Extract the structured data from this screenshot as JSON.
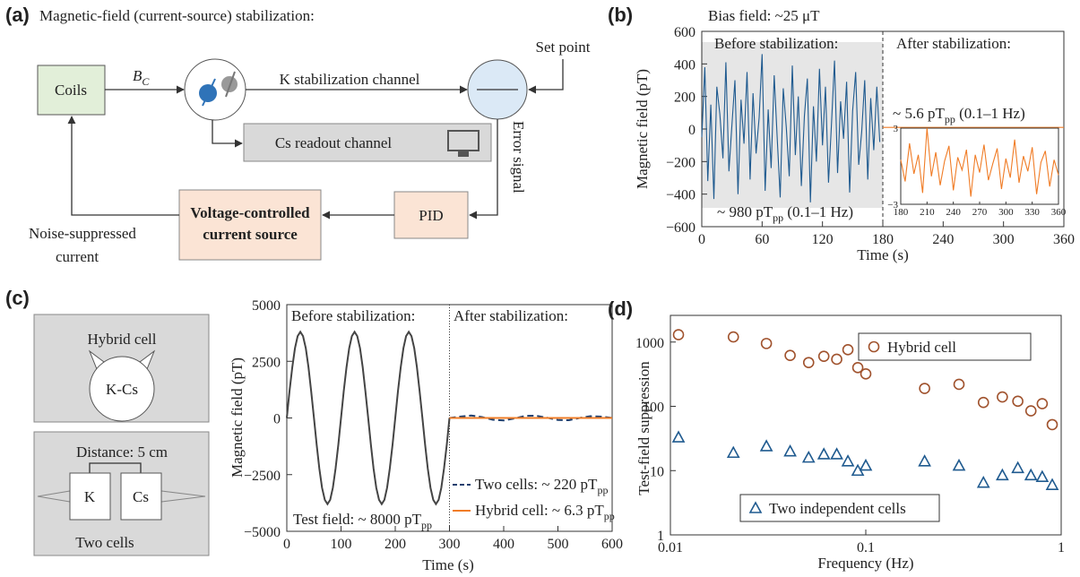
{
  "panel_labels": [
    "(a)",
    "(b)",
    "(c)",
    "(d)"
  ],
  "diagram_a": {
    "title": "Magnetic-field (current-source) stabilization:",
    "coils": "Coils",
    "field": "B",
    "field_sub": "C",
    "k_channel": "K stabilization channel",
    "set_point": "Set point",
    "cs_channel": "Cs readout channel",
    "error": "Error signal",
    "source": [
      "Voltage-controlled",
      "current source"
    ],
    "pid": "PID",
    "current": [
      "Noise-suppressed",
      "current"
    ]
  },
  "diagram_c": {
    "hybrid": "Hybrid cell",
    "kcs": "K-Cs",
    "distance": "Distance: 5 cm",
    "k": "K",
    "cs": "Cs",
    "two": "Two cells"
  },
  "chart_data": [
    {
      "type": "line",
      "xlabel": "Time (s)",
      "ylabel": "Magnetic field (pT)",
      "xlim": [
        0,
        360
      ],
      "ylim": [
        -600,
        600
      ],
      "xticks": [
        0,
        60,
        120,
        180,
        240,
        300,
        360
      ],
      "yticks": [
        600,
        400,
        200,
        0,
        {
          "value": -200,
          "label": "−200"
        },
        {
          "value": -400,
          "label": "−400"
        },
        {
          "value": -600,
          "label": "−600"
        }
      ],
      "annotations": {
        "bias": "Bias field: ~25 μT",
        "before": "Before stabilization:",
        "after": "After stabilization:",
        "before_noise": {
          "text": "~ 980 pT",
          "sub": "pp",
          "tail": " (0.1–1 Hz)"
        },
        "after_noise": {
          "text": "~ 5.6 pT",
          "sub": "pp",
          "tail": " (0.1–1 Hz)"
        }
      },
      "series": [
        {
          "color": "#1f5a8f",
          "x": [
            0,
            3,
            6,
            9,
            12,
            15,
            18,
            21,
            24,
            27,
            30,
            33,
            36,
            39,
            42,
            45,
            48,
            51,
            54,
            57,
            60,
            63,
            66,
            69,
            72,
            75,
            78,
            81,
            84,
            87,
            90,
            93,
            96,
            99,
            102,
            105,
            108,
            111,
            114,
            117,
            120,
            123,
            126,
            129,
            132,
            135,
            138,
            141,
            144,
            147,
            150,
            153,
            156,
            159,
            162,
            165,
            168,
            171,
            174,
            177
          ],
          "values": [
            -50,
            380,
            -320,
            150,
            -430,
            260,
            90,
            -180,
            410,
            -260,
            30,
            300,
            -400,
            180,
            -90,
            350,
            -310,
            220,
            -150,
            70,
            460,
            -380,
            120,
            -240,
            330,
            -60,
            -420,
            250,
            10,
            -290,
            390,
            -160,
            200,
            -350,
            80,
            310,
            -450,
            140,
            -200,
            370,
            -100,
            260,
            -330,
            40,
            420,
            -270,
            170,
            -60,
            290,
            -390,
            110,
            350,
            -220,
            -20,
            300,
            -310,
            190,
            -130,
            260,
            -80
          ]
        },
        {
          "color": "#f07c26",
          "x": [
            180,
            360
          ],
          "values": [
            10,
            10
          ]
        }
      ],
      "inset": {
        "xlim": [
          180,
          360
        ],
        "ylim": [
          -3,
          3
        ],
        "xticks": [
          180,
          210,
          240,
          270,
          300,
          330,
          360
        ],
        "yticks": [
          3,
          {
            "value": -3,
            "label": "−3"
          }
        ],
        "series": [
          {
            "color": "#f07c26",
            "x": [
              180,
              185,
              190,
              195,
              200,
              205,
              210,
              215,
              220,
              225,
              230,
              235,
              240,
              245,
              250,
              255,
              260,
              265,
              270,
              275,
              280,
              285,
              290,
              295,
              300,
              305,
              310,
              315,
              320,
              325,
              330,
              335,
              340,
              345,
              350,
              355,
              360
            ],
            "values": [
              0.5,
              -1.2,
              1.8,
              -0.6,
              0.9,
              -2.1,
              3,
              -0.8,
              1.1,
              -1.5,
              0.4,
              1.6,
              -1.9,
              0.7,
              -0.3,
              1.3,
              -2.4,
              0.9,
              -0.5,
              1.7,
              -1.1,
              0.2,
              1.4,
              -1.8,
              0.6,
              -0.9,
              2.1,
              -1.3,
              0.8,
              -0.4,
              1.5,
              -2.2,
              0.3,
              1.2,
              -1.6,
              0.5,
              -0.7
            ]
          }
        ]
      }
    },
    {
      "type": "line",
      "xlabel": "Time (s)",
      "ylabel": "Magnetic field (pT)",
      "xlim": [
        0,
        600
      ],
      "ylim": [
        -5000,
        5000
      ],
      "xticks": [
        0,
        100,
        200,
        300,
        400,
        500,
        600
      ],
      "yticks": [
        5000,
        2500,
        0,
        {
          "value": -2500,
          "label": "−2500"
        },
        {
          "value": -5000,
          "label": "−5000"
        }
      ],
      "annotations": {
        "before": "Before stabilization:",
        "after": "After stabilization:",
        "test_field": {
          "text": "Test field: ~ 8000 pT",
          "sub": "pp"
        }
      },
      "series": [
        {
          "color": "#444444",
          "x": [
            0,
            5,
            10,
            15,
            20,
            25,
            30,
            35,
            40,
            45,
            50,
            55,
            60,
            65,
            70,
            75,
            80,
            85,
            90,
            95,
            100,
            105,
            110,
            115,
            120,
            125,
            130,
            135,
            140,
            145,
            150,
            155,
            160,
            165,
            170,
            175,
            180,
            185,
            190,
            195,
            200,
            205,
            210,
            215,
            220,
            225,
            230,
            235,
            240,
            245,
            250,
            255,
            260,
            265,
            270,
            275,
            280,
            285,
            290,
            295,
            300
          ],
          "values": [
            0,
            1174,
            2234,
            3074,
            3614,
            3800,
            3614,
            3074,
            2234,
            1174,
            0,
            -1174,
            -2234,
            -3074,
            -3614,
            -3800,
            -3614,
            -3074,
            -2234,
            -1174,
            0,
            1174,
            2234,
            3074,
            3614,
            3800,
            3614,
            3074,
            2234,
            1174,
            0,
            -1174,
            -2234,
            -3074,
            -3614,
            -3800,
            -3614,
            -3074,
            -2234,
            -1174,
            0,
            1174,
            2234,
            3074,
            3614,
            3800,
            3614,
            3074,
            2234,
            1174,
            0,
            -1174,
            -2234,
            -3074,
            -3614,
            -3800,
            -3614,
            -3074,
            -2234,
            -1174,
            0
          ]
        },
        {
          "name": "Two cells: ~ 220 pT",
          "name_sub": "pp",
          "color": "#1f3f6e",
          "dash": true,
          "x": [
            300,
            320,
            340,
            360,
            380,
            400,
            420,
            440,
            460,
            480,
            500,
            520,
            540,
            560,
            580,
            600
          ],
          "values": [
            0,
            60,
            110,
            40,
            -80,
            -110,
            -20,
            90,
            100,
            10,
            -90,
            -100,
            0,
            80,
            60,
            0
          ]
        },
        {
          "name": "Hybrid cell: ~ 6.3 pT",
          "name_sub": "pp",
          "color": "#f07c26",
          "x": [
            300,
            600
          ],
          "values": [
            0,
            0
          ]
        }
      ]
    },
    {
      "type": "scatter",
      "xlabel": "Frequency (Hz)",
      "ylabel": "Test-field suppression",
      "log_x": true,
      "log_y": true,
      "xlim": [
        0.01,
        1
      ],
      "ylim": [
        1,
        2600
      ],
      "xticks": [
        0.01,
        0.1,
        1
      ],
      "yticks": [
        1,
        10,
        100,
        1000
      ],
      "series": [
        {
          "name": "Hybrid cell",
          "color": "#a0522d",
          "marker": "circle",
          "x": [
            0.011,
            0.021,
            0.031,
            0.041,
            0.051,
            0.061,
            0.071,
            0.081,
            0.091,
            0.1,
            0.2,
            0.3,
            0.4,
            0.5,
            0.6,
            0.7,
            0.8,
            0.9
          ],
          "values": [
            1300,
            1200,
            950,
            620,
            480,
            600,
            540,
            760,
            400,
            320,
            190,
            220,
            115,
            140,
            120,
            85,
            110,
            52
          ]
        },
        {
          "name": "Two independent cells",
          "color": "#1f5a8f",
          "marker": "triangle",
          "x": [
            0.011,
            0.021,
            0.031,
            0.041,
            0.051,
            0.061,
            0.071,
            0.081,
            0.091,
            0.1,
            0.2,
            0.3,
            0.4,
            0.5,
            0.6,
            0.7,
            0.8,
            0.9
          ],
          "values": [
            33,
            19,
            24,
            20,
            16,
            18,
            18,
            14,
            10,
            12,
            14,
            12,
            6.5,
            8.5,
            11,
            8.5,
            8,
            6
          ]
        }
      ]
    }
  ]
}
